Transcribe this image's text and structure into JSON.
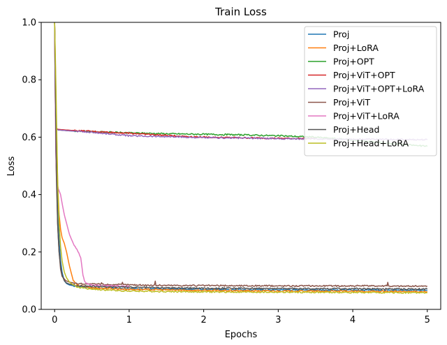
{
  "chart_data": {
    "type": "line",
    "title": "Train Loss",
    "xlabel": "Epochs",
    "ylabel": "Loss",
    "xlim": [
      -0.18,
      5.18
    ],
    "ylim": [
      0.0,
      1.0
    ],
    "xticks": [
      0,
      1,
      2,
      3,
      4,
      5
    ],
    "xtick_labels": [
      "0",
      "1",
      "2",
      "3",
      "4",
      "5"
    ],
    "yticks": [
      0.0,
      0.2,
      0.4,
      0.6,
      0.8,
      1.0
    ],
    "ytick_labels": [
      "0.0",
      "0.2",
      "0.4",
      "0.6",
      "0.8",
      "1.0"
    ],
    "grid": false,
    "legend_position": "top-right",
    "series": [
      {
        "name": "Proj",
        "color": "#1f77b4",
        "x": [
          0.0,
          0.02,
          0.04,
          0.06,
          0.08,
          0.1,
          0.13,
          0.16,
          0.2,
          0.3,
          0.5,
          1.0,
          2.0,
          3.0,
          4.0,
          5.0
        ],
        "y": [
          1.0,
          0.6,
          0.35,
          0.24,
          0.17,
          0.13,
          0.1,
          0.09,
          0.085,
          0.08,
          0.075,
          0.072,
          0.07,
          0.068,
          0.067,
          0.066
        ]
      },
      {
        "name": "Proj+LoRA",
        "color": "#ff7f0e",
        "x": [
          0.0,
          0.02,
          0.04,
          0.06,
          0.08,
          0.1,
          0.13,
          0.16,
          0.2,
          0.25,
          0.3,
          0.5,
          1.0,
          2.0,
          3.0,
          4.0,
          5.0
        ],
        "y": [
          1.0,
          0.7,
          0.45,
          0.33,
          0.28,
          0.25,
          0.23,
          0.2,
          0.15,
          0.1,
          0.085,
          0.075,
          0.07,
          0.066,
          0.064,
          0.063,
          0.062
        ]
      },
      {
        "name": "Proj+OPT",
        "color": "#2ca02c",
        "x": [
          0.0,
          0.01,
          0.02,
          0.05,
          0.2,
          0.5,
          1.0,
          1.5,
          2.0,
          2.5,
          3.0,
          3.5,
          4.0,
          4.5,
          5.0
        ],
        "y": [
          1.0,
          0.7,
          0.63,
          0.625,
          0.622,
          0.619,
          0.615,
          0.612,
          0.61,
          0.608,
          0.605,
          0.6,
          0.59,
          0.578,
          0.568
        ]
      },
      {
        "name": "Proj+ViT+OPT",
        "color": "#d62728",
        "x": [
          0.0,
          0.01,
          0.02,
          0.05,
          0.2,
          0.5,
          1.0,
          1.5,
          2.0,
          2.5,
          3.0,
          3.5
        ],
        "y": [
          1.0,
          0.7,
          0.63,
          0.627,
          0.624,
          0.62,
          0.614,
          0.606,
          0.6,
          0.598,
          0.596,
          0.595
        ]
      },
      {
        "name": "Proj+ViT+OPT+LoRA",
        "color": "#9467bd",
        "x": [
          0.0,
          0.01,
          0.02,
          0.05,
          0.2,
          0.5,
          1.0,
          1.5,
          2.0,
          2.5,
          3.0,
          3.5,
          4.0,
          4.5,
          5.0
        ],
        "y": [
          1.0,
          0.7,
          0.628,
          0.625,
          0.622,
          0.617,
          0.605,
          0.602,
          0.598,
          0.597,
          0.595,
          0.594,
          0.593,
          0.592,
          0.591
        ]
      },
      {
        "name": "Proj+ViT",
        "color": "#8c564b",
        "x": [
          0.0,
          0.02,
          0.04,
          0.06,
          0.08,
          0.1,
          0.15,
          0.2,
          0.3,
          0.5,
          0.62,
          0.63,
          0.64,
          0.9,
          0.91,
          0.92,
          1.34,
          1.35,
          1.36,
          2.0,
          3.0,
          4.0,
          4.46,
          4.47,
          4.48,
          5.0
        ],
        "y": [
          1.0,
          0.5,
          0.3,
          0.2,
          0.14,
          0.115,
          0.1,
          0.095,
          0.09,
          0.088,
          0.088,
          0.094,
          0.087,
          0.086,
          0.093,
          0.086,
          0.084,
          0.1,
          0.084,
          0.083,
          0.082,
          0.082,
          0.082,
          0.096,
          0.081,
          0.081
        ]
      },
      {
        "name": "Proj+ViT+LoRA",
        "color": "#e377c2",
        "x": [
          0.0,
          0.015,
          0.03,
          0.05,
          0.08,
          0.1,
          0.13,
          0.16,
          0.2,
          0.25,
          0.3,
          0.35,
          0.38,
          0.4,
          0.43,
          0.5,
          0.7,
          1.0
        ],
        "y": [
          1.0,
          0.55,
          0.44,
          0.42,
          0.4,
          0.37,
          0.33,
          0.3,
          0.26,
          0.23,
          0.21,
          0.18,
          0.12,
          0.1,
          0.09,
          0.085,
          0.082,
          0.08
        ]
      },
      {
        "name": "Proj+Head",
        "color": "#555555",
        "x": [
          0.0,
          0.02,
          0.04,
          0.06,
          0.08,
          0.1,
          0.13,
          0.16,
          0.2,
          0.3,
          0.5,
          1.0,
          2.0,
          3.0,
          4.0,
          5.0
        ],
        "y": [
          1.0,
          0.55,
          0.3,
          0.2,
          0.15,
          0.12,
          0.1,
          0.092,
          0.088,
          0.083,
          0.08,
          0.077,
          0.074,
          0.073,
          0.072,
          0.071
        ]
      },
      {
        "name": "Proj+Head+LoRA",
        "color": "#bcbd22",
        "x": [
          0.0,
          0.02,
          0.04,
          0.06,
          0.08,
          0.1,
          0.13,
          0.16,
          0.2,
          0.25,
          0.3,
          0.5,
          1.0,
          2.0,
          3.0,
          4.0,
          5.0
        ],
        "y": [
          1.0,
          0.75,
          0.45,
          0.3,
          0.22,
          0.17,
          0.13,
          0.11,
          0.095,
          0.085,
          0.078,
          0.07,
          0.064,
          0.061,
          0.06,
          0.059,
          0.058
        ]
      }
    ]
  }
}
